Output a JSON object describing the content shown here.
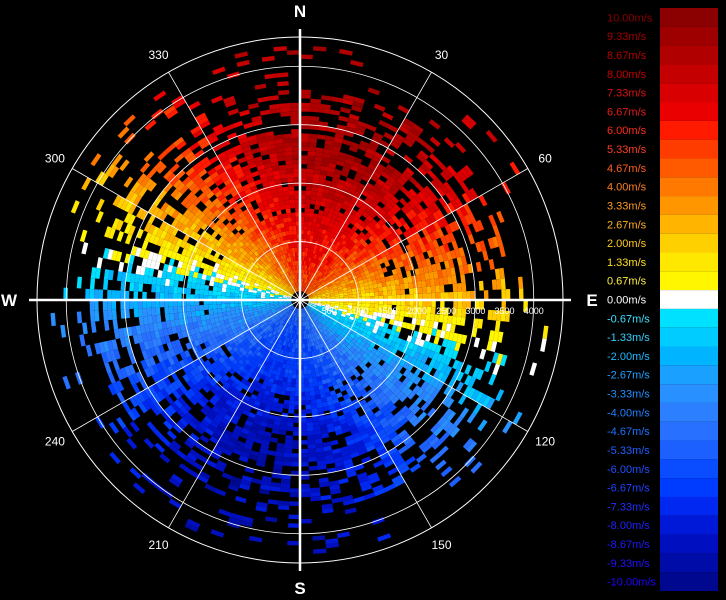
{
  "chart_data": {
    "type": "polar-heatmap",
    "title": "",
    "cardinals": [
      "N",
      "E",
      "S",
      "W"
    ],
    "azimuth_labels": [
      "30",
      "60",
      "120",
      "150",
      "210",
      "240",
      "300",
      "330"
    ],
    "range_labels": [
      "500",
      "1000",
      "1500",
      "2000",
      "2500",
      "3000",
      "3500",
      "4000"
    ],
    "max_range": 4500,
    "legend_unit": "m/s",
    "legend_labels": [
      "10.00m/s",
      "9.33m/s",
      "8.67m/s",
      "8.00m/s",
      "7.33m/s",
      "6.67m/s",
      "6.00m/s",
      "5.33m/s",
      "4.67m/s",
      "4.00m/s",
      "3.33m/s",
      "2.67m/s",
      "2.00m/s",
      "1.33m/s",
      "0.67m/s",
      "0.00m/s",
      "-0.67m/s",
      "-1.33m/s",
      "-2.00m/s",
      "-2.67m/s",
      "-3.33m/s",
      "-4.00m/s",
      "-4.67m/s",
      "-5.33m/s",
      "-6.00m/s",
      "-6.67m/s",
      "-7.33m/s",
      "-8.00m/s",
      "-8.67m/s",
      "-9.33m/s",
      "-10.00m/s"
    ],
    "legend_colors": [
      "#8b0000",
      "#9e0000",
      "#b00000",
      "#c40000",
      "#d80000",
      "#ea0000",
      "#ff1a00",
      "#ff3c00",
      "#ff5a00",
      "#ff7800",
      "#ff9600",
      "#ffb400",
      "#ffd000",
      "#ffe800",
      "#fff600",
      "#ffffff",
      "#00e0ff",
      "#00ccff",
      "#00b4ff",
      "#1aa0ff",
      "#2890ff",
      "#2c80ff",
      "#2870ff",
      "#1c60ff",
      "#0a4cff",
      "#003cff",
      "#0028f0",
      "#0018d8",
      "#0010c0",
      "#000ca8",
      "#000890"
    ],
    "legend_text_colors": [
      "#8b0000",
      "#a00000",
      "#b40000",
      "#c80000",
      "#dc1010",
      "#e81a1a",
      "#ff2a1a",
      "#ff4020",
      "#ff6020",
      "#ff8020",
      "#ff9a20",
      "#ffb020",
      "#ffc820",
      "#ffe020",
      "#fff040",
      "#ffffff",
      "#40e0ff",
      "#30d0ff",
      "#20b8ff",
      "#20a0ff",
      "#2090ff",
      "#2080ff",
      "#2070ff",
      "#2060ff",
      "#2050ff",
      "#2040ff",
      "#2030ff",
      "#2020ff",
      "#2018ff",
      "#2010ff",
      "#2000ff"
    ]
  }
}
